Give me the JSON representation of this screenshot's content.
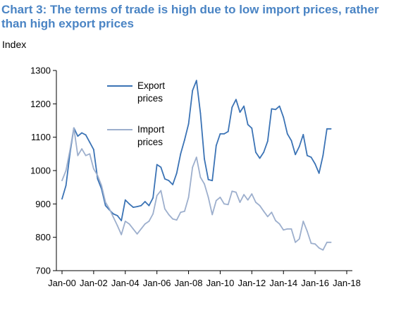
{
  "chart_data": {
    "type": "line",
    "title": "Chart 3: The terms of trade is high due to low import prices, rather than high export prices",
    "ylabel": "Index",
    "xlabel": "",
    "ylim": [
      700,
      1300
    ],
    "yticks": [
      "1300",
      "1200",
      "1100",
      "1000",
      "900",
      "800",
      "700"
    ],
    "xticks": [
      "Jan-00",
      "Jan-02",
      "Jan-04",
      "Jan-06",
      "Jan-08",
      "Jan-10",
      "Jan-12",
      "Jan-14",
      "Jan-16",
      "Jan-18"
    ],
    "grid": false,
    "legend": "upper-left",
    "series": [
      {
        "name": "Export prices",
        "legend_lines": [
          "Export",
          "prices"
        ],
        "color": "#3b73b5",
        "x": [
          "2000-01",
          "2000-04",
          "2000-07",
          "2000-10",
          "2001-01",
          "2001-04",
          "2001-07",
          "2001-10",
          "2002-01",
          "2002-04",
          "2002-07",
          "2002-10",
          "2003-01",
          "2003-04",
          "2003-07",
          "2003-10",
          "2004-01",
          "2004-04",
          "2004-07",
          "2004-10",
          "2005-01",
          "2005-04",
          "2005-07",
          "2005-10",
          "2006-01",
          "2006-04",
          "2006-07",
          "2006-10",
          "2007-01",
          "2007-04",
          "2007-07",
          "2007-10",
          "2008-01",
          "2008-04",
          "2008-07",
          "2008-10",
          "2009-01",
          "2009-04",
          "2009-07",
          "2009-10",
          "2010-01",
          "2010-04",
          "2010-07",
          "2010-10",
          "2011-01",
          "2011-04",
          "2011-07",
          "2011-10",
          "2012-01",
          "2012-04",
          "2012-07",
          "2012-10",
          "2013-01",
          "2013-04",
          "2013-07",
          "2013-10",
          "2014-01",
          "2014-04",
          "2014-07",
          "2014-10",
          "2015-01",
          "2015-04",
          "2015-07",
          "2015-10",
          "2016-01",
          "2016-04",
          "2016-07",
          "2016-10",
          "2017-01"
        ],
        "values": [
          915,
          955,
          1050,
          1128,
          1103,
          1113,
          1107,
          1085,
          1063,
          975,
          945,
          895,
          882,
          870,
          865,
          850,
          912,
          900,
          890,
          892,
          895,
          907,
          895,
          918,
          1018,
          1010,
          975,
          970,
          958,
          992,
          1050,
          1092,
          1140,
          1240,
          1270,
          1172,
          1035,
          973,
          970,
          1075,
          1110,
          1110,
          1117,
          1190,
          1213,
          1175,
          1193,
          1138,
          1127,
          1055,
          1037,
          1055,
          1088,
          1185,
          1183,
          1193,
          1160,
          1110,
          1090,
          1048,
          1072,
          1108,
          1045,
          1040,
          1020,
          992,
          1045,
          1125,
          1125
        ]
      },
      {
        "name": "Import prices",
        "legend_lines": [
          "Import",
          "prices"
        ],
        "color": "#9dafcd",
        "x": [
          "2000-01",
          "2000-04",
          "2000-07",
          "2000-10",
          "2001-01",
          "2001-04",
          "2001-07",
          "2001-10",
          "2002-01",
          "2002-04",
          "2002-07",
          "2002-10",
          "2003-01",
          "2003-04",
          "2003-07",
          "2003-10",
          "2004-01",
          "2004-04",
          "2004-07",
          "2004-10",
          "2005-01",
          "2005-04",
          "2005-07",
          "2005-10",
          "2006-01",
          "2006-04",
          "2006-07",
          "2006-10",
          "2007-01",
          "2007-04",
          "2007-07",
          "2007-10",
          "2008-01",
          "2008-04",
          "2008-07",
          "2008-10",
          "2009-01",
          "2009-04",
          "2009-07",
          "2009-10",
          "2010-01",
          "2010-04",
          "2010-07",
          "2010-10",
          "2011-01",
          "2011-04",
          "2011-07",
          "2011-10",
          "2012-01",
          "2012-04",
          "2012-07",
          "2012-10",
          "2013-01",
          "2013-04",
          "2013-07",
          "2013-10",
          "2014-01",
          "2014-04",
          "2014-07",
          "2014-10",
          "2015-01",
          "2015-04",
          "2015-07",
          "2015-10",
          "2016-01",
          "2016-04",
          "2016-07",
          "2016-10",
          "2017-01"
        ],
        "values": [
          970,
          1000,
          1060,
          1128,
          1045,
          1065,
          1045,
          1050,
          1005,
          985,
          955,
          905,
          885,
          860,
          835,
          808,
          848,
          840,
          825,
          810,
          825,
          840,
          848,
          870,
          925,
          940,
          885,
          868,
          855,
          852,
          875,
          878,
          920,
          1010,
          1040,
          980,
          960,
          920,
          868,
          910,
          920,
          900,
          898,
          938,
          935,
          905,
          928,
          912,
          930,
          905,
          895,
          878,
          862,
          875,
          850,
          840,
          822,
          825,
          825,
          785,
          795,
          848,
          818,
          782,
          780,
          768,
          762,
          785,
          785
        ]
      }
    ]
  }
}
